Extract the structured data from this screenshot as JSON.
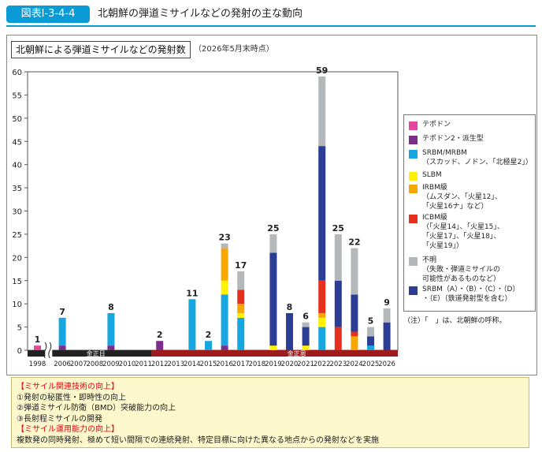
{
  "figure": {
    "number": "図表Ⅰ-3-4-4",
    "title": "北朝鮮の弾道ミサイルなどの発射の主な動向"
  },
  "chart_title": "北朝鮮による弾道ミサイルなどの発射数",
  "chart_subtitle": "（2026年5月末時点）",
  "legend_items": [
    {
      "label": "テポドン",
      "color": "#e2479d"
    },
    {
      "label": "テポドン2・派生型",
      "color": "#7b2e8c"
    },
    {
      "label": "SRBM/MRBM\n（スカッド、ノドン、「北極星2」）",
      "color": "#16a6e0"
    },
    {
      "label": "SLBM",
      "color": "#fff100"
    },
    {
      "label": "IRBM級\n（ムスダン、「火星12」、\n「火星16ナ」など）",
      "color": "#f7a800"
    },
    {
      "label": "ICBM級\n（「火星14」、「火星15」、\n「火星17」、「火星18」、\n「火星19」）",
      "color": "#e52f1f"
    },
    {
      "label": "不明\n（失敗・弾道ミサイルの\n可能性があるものなど）",
      "color": "#b5b8ba"
    },
    {
      "label": "SRBM（A）・（B）・（C）・（D）\n・（E）（鉄道発射型を含む）",
      "color": "#2b3d94"
    }
  ],
  "note": "（注）「　」は、北朝鮮の呼称。",
  "eras": [
    {
      "label": "金正日",
      "color": "#222222"
    },
    {
      "label": "金正恩",
      "color": "#9e1b1b"
    }
  ],
  "info_panel": [
    {
      "text": "【ミサイル関連技術の向上】",
      "heading": true
    },
    {
      "text": "①発射の秘匿性・即時性の向上",
      "heading": false
    },
    {
      "text": "②弾道ミサイル防衛（BMD）突破能力の向上",
      "heading": false
    },
    {
      "text": "③長射程ミサイルの開発",
      "heading": false
    },
    {
      "text": "【ミサイル運用能力の向上】",
      "heading": true
    },
    {
      "text": "複数発の同時発射、極めて短い間隔での連続発射、特定目標に向けた異なる地点からの発射などを実施",
      "heading": false
    }
  ],
  "chart_data": {
    "type": "bar",
    "stacked": true,
    "title": "北朝鮮による弾道ミサイルなどの発射数",
    "xlabel": "",
    "ylabel": "",
    "ylim": [
      0,
      60
    ],
    "yticks": [
      0,
      5,
      10,
      15,
      20,
      25,
      30,
      35,
      40,
      45,
      50,
      55,
      60
    ],
    "grid": false,
    "legend_position": "right",
    "axis_break_after": "1998",
    "categories": [
      "1998",
      "2006",
      "2007",
      "2008",
      "2009",
      "2010",
      "2011",
      "2012",
      "2013",
      "2014",
      "2015",
      "2016",
      "2017",
      "2018",
      "2019",
      "2020",
      "2021",
      "2022",
      "2023",
      "2024",
      "2025",
      "2026"
    ],
    "totals": [
      1,
      7,
      null,
      null,
      8,
      null,
      null,
      2,
      null,
      11,
      2,
      23,
      17,
      null,
      25,
      8,
      6,
      59,
      25,
      22,
      5,
      9
    ],
    "series": [
      {
        "name": "テポドン",
        "color": "#e2479d",
        "values": [
          1,
          0,
          0,
          0,
          0,
          0,
          0,
          0,
          0,
          0,
          0,
          0,
          0,
          0,
          0,
          0,
          0,
          0,
          0,
          0,
          0,
          0
        ]
      },
      {
        "name": "テポドン2・派生型",
        "color": "#7b2e8c",
        "values": [
          0,
          1,
          0,
          0,
          1,
          0,
          0,
          2,
          0,
          0,
          0,
          1,
          0,
          0,
          0,
          0,
          0,
          0,
          0,
          0,
          0,
          0
        ]
      },
      {
        "name": "SRBM/MRBM",
        "color": "#16a6e0",
        "values": [
          0,
          6,
          0,
          0,
          7,
          0,
          0,
          0,
          0,
          11,
          2,
          11,
          7,
          0,
          0,
          0,
          0,
          5,
          0,
          0,
          1,
          0
        ]
      },
      {
        "name": "SLBM",
        "color": "#fff100",
        "values": [
          0,
          0,
          0,
          0,
          0,
          0,
          0,
          0,
          0,
          0,
          0,
          3,
          1,
          0,
          1,
          0,
          1,
          2,
          0,
          0,
          0,
          0
        ]
      },
      {
        "name": "IRBM級",
        "color": "#f7a800",
        "values": [
          0,
          0,
          0,
          0,
          0,
          0,
          0,
          0,
          0,
          0,
          0,
          7,
          2,
          0,
          0,
          0,
          0,
          1,
          0,
          3,
          0,
          0
        ]
      },
      {
        "name": "ICBM級",
        "color": "#e52f1f",
        "values": [
          0,
          0,
          0,
          0,
          0,
          0,
          0,
          0,
          0,
          0,
          0,
          0,
          3,
          0,
          0,
          0,
          0,
          7,
          5,
          1,
          0,
          0
        ]
      },
      {
        "name": "SRBM（A）・（B）・（C）・（D）・（E）",
        "color": "#2b3d94",
        "values": [
          0,
          0,
          0,
          0,
          0,
          0,
          0,
          0,
          0,
          0,
          0,
          0,
          0,
          0,
          20,
          8,
          4,
          29,
          10,
          8,
          2,
          6
        ]
      },
      {
        "name": "不明",
        "color": "#b5b8ba",
        "values": [
          0,
          0,
          0,
          0,
          0,
          0,
          0,
          0,
          0,
          0,
          0,
          1,
          4,
          0,
          4,
          0,
          1,
          15,
          10,
          10,
          2,
          3
        ]
      }
    ]
  }
}
